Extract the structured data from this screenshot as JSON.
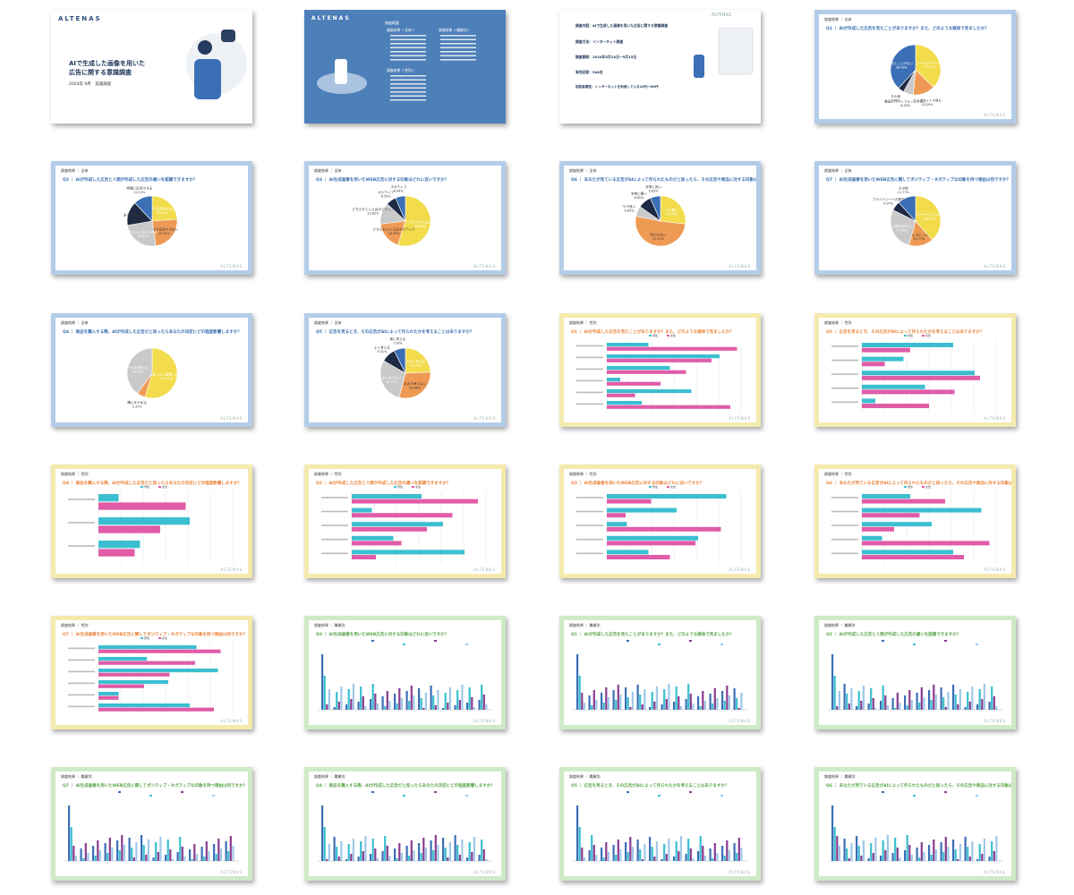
{
  "brand": "ALTENAS",
  "cover": {
    "title_line1": "AIで生成した画像を用いた",
    "title_line2": "広告に関する意識調査",
    "date": "2024年 9月　実施調査",
    "vertical": "REPORT OF SURVEY RESULTS"
  },
  "contents": {
    "label": "CONTENTS",
    "heading": "調査概要",
    "section1": "調査結果 ＜全体＞",
    "section2": "調査結果 ＜職業別＞",
    "section3": "調査結果 ＜性別＞"
  },
  "overview": {
    "label": "SURVEY OVERVIEW",
    "line1": "調査内容：AIで生成した画像を用いた広告に関する意識調査",
    "line2": "調査方法：インターネット調査",
    "line3": "調査期間：2024年5月14日〜5月15日",
    "line4": "有効回答：548名",
    "line5": "回答者属性：インターネットを利用している10代〜60代"
  },
  "headers": {
    "overall": "調査結果 ｜ 全体",
    "gender": "調査結果 ｜ 性別",
    "occupation": "調査結果 ｜ 職業別"
  },
  "slides": [
    {
      "q": "Q1 ｜ AIが作成した広告を見たことがありますか？また、どのような媒体で見ましたか？",
      "hdr": "overall"
    },
    {
      "q": "Q2 ｜ AIが作成した広告と人間が作成した広告の違いを認識できますか？",
      "hdr": "overall"
    },
    {
      "q": "Q3 ｜ AI生成画像を用いたWEB広告に対する印象はどれに近いですか？",
      "hdr": "overall"
    },
    {
      "q": "Q6 ｜ あなたが見ている広告がAIによって作られたものだと知ったら、その広告や商品に対する印象は変わりますか？",
      "hdr": "overall"
    },
    {
      "q": "Q7 ｜ AI生成画像を用いたWEB広告に関してポジティブ・ネガティブな印象を持つ理由は何ですか？",
      "hdr": "overall"
    },
    {
      "q": "Q4 ｜ 商品を購入する際、AIが作成した広告だと知ったらあなたの決定にどの程度影響しますか？",
      "hdr": "overall"
    },
    {
      "q": "Q5 ｜ 広告を見るとき、その広告がAIによって作られたかを考えることはありますか？",
      "hdr": "overall"
    },
    {
      "q": "Q1 ｜ AIが作成した広告を見たことがありますか？また、どのような媒体で見ましたか？",
      "hdr": "gender"
    },
    {
      "q": "Q5 ｜ 広告を見るとき、その広告がAIによって作られたかを考えることはありますか？",
      "hdr": "gender"
    },
    {
      "q": "Q4 ｜ 商品を購入する際、AIが作成した広告だと知ったらあなたの決定にどの程度影響しますか？",
      "hdr": "gender"
    },
    {
      "q": "Q2 ｜ AIが作成した広告と人間が作成した広告の違いを認識できますか？",
      "hdr": "gender"
    },
    {
      "q": "Q3 ｜ AI生成画像を用いたWEB広告に対する印象はどれに近いですか？",
      "hdr": "gender"
    },
    {
      "q": "Q6 ｜ あなたが見ている広告がAIによって作られたものだと知ったら、その広告や商品に対する印象は変わりますか？",
      "hdr": "gender"
    },
    {
      "q": "Q7 ｜ AI生成画像を用いたWEB広告に関してポジティブ・ネガティブな印象を持つ理由は何ですか？",
      "hdr": "gender"
    },
    {
      "q": "Q3 ｜ AI生成画像を用いたWEB広告に対する印象はどれに近いですか？",
      "hdr": "occupation"
    },
    {
      "q": "Q1 ｜ AIが作成した広告を見たことがありますか？また、どのような媒体で見ましたか？",
      "hdr": "occupation"
    },
    {
      "q": "Q2 ｜ AIが作成した広告と人間が作成した広告の違いを認識できますか？",
      "hdr": "occupation"
    },
    {
      "q": "Q7 ｜ AI生成画像を用いたWEB広告に関してポジティブ・ネガティブな印象を持つ理由は何ですか？",
      "hdr": "occupation"
    },
    {
      "q": "Q4 ｜ 商品を購入する際、AIが作成した広告だと知ったらあなたの決定にどの程度影響しますか？",
      "hdr": "occupation"
    },
    {
      "q": "Q5 ｜ 広告を見るとき、その広告がAIによって作られたかを考えることはありますか？",
      "hdr": "occupation"
    },
    {
      "q": "Q6 ｜ あなたが見ている広告がAIによって作られたものだと知ったら、その広告や商品に対する印象は変わりますか？",
      "hdr": "occupation"
    }
  ],
  "legend": {
    "male": "男性",
    "female": "女性"
  },
  "colors": {
    "blue": "#3b6fb6",
    "navy": "#1e2a44",
    "gray": "#c9c9c9",
    "yellow": "#f2dc4b",
    "orange": "#ee9a55",
    "cyan": "#3bbfd0",
    "pink": "#e05ca8",
    "purple": "#8a3c8e",
    "lightblue": "#9fc7e8"
  },
  "chart_data": [
    {
      "type": "pie",
      "values": [
        37.27,
        14.29,
        6.45,
        3.93,
        38.06
      ],
      "labels": [
        "ソーシャルメディアで見た",
        "ウェブサイトで見た",
        "動画プラットフォームで見た",
        "その他",
        "見たことがない"
      ],
      "percents": [
        "37.27%",
        "14.29%",
        "6.45%",
        "3.93%",
        "38.06%"
      ]
    },
    {
      "type": "pie",
      "values": [
        23.91,
        23.72,
        24.64,
        15.57,
        12.13
      ],
      "labels": [
        "全く区別できない",
        "あまり区別できない",
        "どちらともいえない",
        "ある程度区別できる",
        "明確に区別できる"
      ],
      "percents": [
        "23.91%",
        "23.72%",
        "24.64%",
        "15.57%",
        "12.13%"
      ]
    },
    {
      "type": "pie",
      "values": [
        54.86,
        18.29,
        13.82,
        6.59,
        6.44
      ],
      "labels": [
        "どちらでもない",
        "どちらかといえばネガティブ",
        "どちらかといえばポジティブ",
        "ポジティブ",
        "ネガティブ"
      ],
      "percents": [
        "54.86%",
        "18.29%",
        "13.82%",
        "6.59%",
        "6.44%"
      ]
    },
    {
      "type": "pie",
      "values": [
        26.84,
        51.27,
        6.64,
        8.62,
        6.63
      ],
      "labels": [
        "やや悪い",
        "変わらない",
        "やや良い",
        "非常に悪い",
        "非常に良い"
      ],
      "percents": [
        "26.84%",
        "51.27%",
        "6.64%",
        "8.62%",
        "6.63%"
      ]
    },
    {
      "type": "pie",
      "values": [
        38.53,
        15.77,
        27.96,
        5.97,
        11.77
      ],
      "labels": [
        "商品の品質やサービスとの整合性が心配",
        "親しみにくい",
        "人間味がない",
        "プライバシーへの懸念",
        "その他"
      ],
      "percents": [
        "38.53%",
        "15.77%",
        "27.96%",
        "5.97%",
        "11.77%"
      ]
    },
    {
      "type": "pie",
      "values": [
        54.61,
        5.37,
        40.02
      ],
      "labels": [
        "まったく影響しない",
        "購入をやめる",
        "やや影響する"
      ],
      "percents": [
        "54.61%",
        "5.37%",
        "40.02%"
      ]
    },
    {
      "type": "pie",
      "values": [
        24.27,
        29.86,
        29.17,
        9.31,
        7.39
      ],
      "labels": [
        "たまに考える",
        "あまり考えない",
        "全く考えない",
        "よく考える",
        "常に考える"
      ],
      "percents": [
        "24.27%",
        "29.86%",
        "29.17%",
        "9.31%",
        "7.39%"
      ]
    }
  ]
}
